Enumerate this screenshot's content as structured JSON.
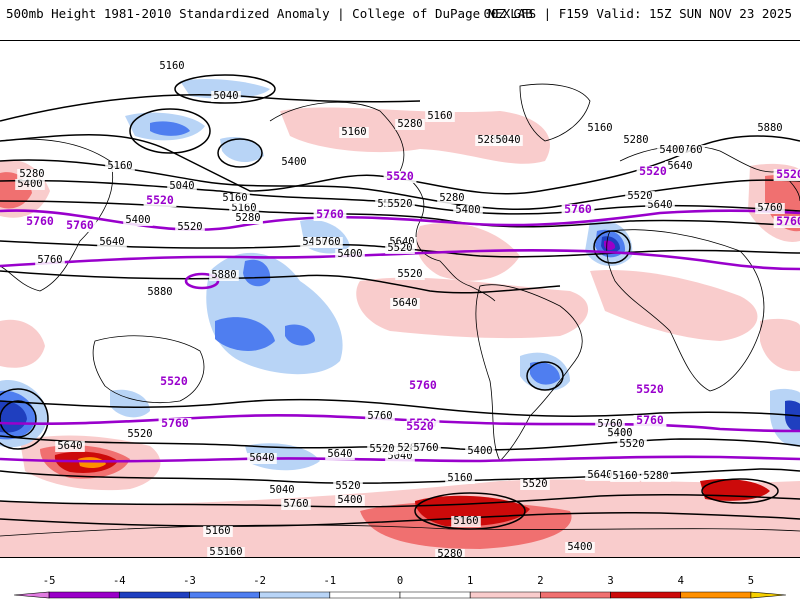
{
  "header": {
    "title_left": "500mb Height 1981-2010 Standardized Anomaly | College of DuPage NEXLAB",
    "title_right": "00Z GFS | F159 Valid: 15Z SUN NOV 23 2025"
  },
  "colors": {
    "contour": "#000000",
    "highlight_contour": "#9900cc",
    "coastline": "#000000"
  },
  "contour_labels": [
    "5160",
    "5040",
    "5160",
    "5280",
    "5160",
    "5280",
    "5400",
    "5040",
    "5160",
    "5280",
    "5400",
    "5520",
    "5640",
    "5760",
    "5520",
    "5280",
    "5400",
    "5520",
    "5640",
    "5760",
    "5880",
    "5880",
    "5400",
    "5520",
    "5640",
    "5760",
    "5880",
    "5760",
    "5640",
    "5520",
    "5400",
    "5280",
    "5160",
    "5040",
    "5160",
    "5280",
    "5400",
    "5520",
    "5640",
    "5760",
    "5640",
    "5520",
    "5400",
    "5280",
    "5160",
    "5040",
    "5160",
    "5280",
    "5400",
    "5520",
    "5640",
    "5760",
    "5640",
    "5520",
    "5400",
    "5280",
    "5160",
    "5520",
    "5640",
    "5760",
    "5160",
    "5280",
    "5400",
    "5520",
    "5640",
    "5760",
    "5400",
    "5280",
    "5160",
    "5040",
    "5160"
  ],
  "highlight_labels": [
    "5520",
    "5760",
    "5520",
    "5760",
    "5520",
    "5760",
    "5520",
    "5760",
    "5520",
    "5760",
    "5520",
    "5760",
    "5520",
    "5760",
    "5520",
    "5760"
  ],
  "colorbar": {
    "ticks": [
      "-5",
      "-4",
      "-3",
      "-2",
      "-1",
      "0",
      "1",
      "2",
      "3",
      "4",
      "5"
    ],
    "min": -5.5,
    "max": 5.5,
    "bins": [
      {
        "from": -5.5,
        "to": -5,
        "color": "#e07be0"
      },
      {
        "from": -5,
        "to": -4,
        "color": "#9a00c8"
      },
      {
        "from": -4,
        "to": -3,
        "color": "#1f3fbf"
      },
      {
        "from": -3,
        "to": -2,
        "color": "#4f7ef0"
      },
      {
        "from": -2,
        "to": -1,
        "color": "#b8d4f6"
      },
      {
        "from": -1,
        "to": 0,
        "color": "#ffffff"
      },
      {
        "from": 0,
        "to": 1,
        "color": "#ffffff"
      },
      {
        "from": 1,
        "to": 2,
        "color": "#f9cccc"
      },
      {
        "from": 2,
        "to": 3,
        "color": "#f07070"
      },
      {
        "from": 3,
        "to": 4,
        "color": "#cc0a0a"
      },
      {
        "from": 4,
        "to": 5,
        "color": "#ff9000"
      },
      {
        "from": 5,
        "to": 5.5,
        "color": "#f7d000"
      }
    ]
  },
  "anomalies": [
    {
      "kind": "pos",
      "level": 1
    },
    {
      "kind": "pos",
      "level": 1
    },
    {
      "kind": "pos",
      "level": 1
    },
    {
      "kind": "pos",
      "level": 1
    },
    {
      "kind": "pos",
      "level": 1
    },
    {
      "kind": "pos",
      "level": 1
    },
    {
      "kind": "pos",
      "level": 1
    },
    {
      "kind": "pos",
      "level": 1
    },
    {
      "kind": "pos",
      "level": 1
    },
    {
      "kind": "pos",
      "level": 1
    },
    {
      "kind": "pos",
      "level": 2
    },
    {
      "kind": "pos",
      "level": 2
    },
    {
      "kind": "pos",
      "level": 2
    },
    {
      "kind": "pos",
      "level": 3
    },
    {
      "kind": "pos",
      "level": 4
    },
    {
      "kind": "neg",
      "level": 1
    },
    {
      "kind": "neg",
      "level": 1
    },
    {
      "kind": "neg",
      "level": 2
    },
    {
      "kind": "neg",
      "level": 3
    },
    {
      "kind": "neg",
      "level": 4
    }
  ]
}
